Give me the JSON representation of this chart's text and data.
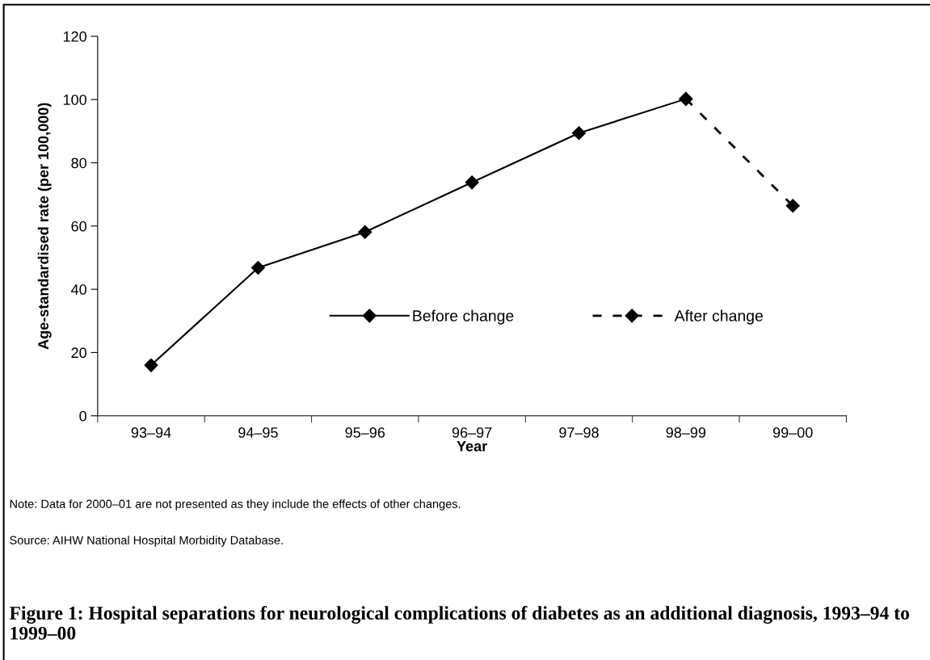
{
  "chart_data": {
    "type": "line",
    "title": "Figure 1: Hospital separations for neurological complications of diabetes as an additional diagnosis, 1993–94 to 1999–00",
    "xlabel": "Year",
    "ylabel": "Age-standardised rate (per 100,000)",
    "categories": [
      "93–94",
      "94–95",
      "95–96",
      "96–97",
      "97–98",
      "98–99",
      "99–00"
    ],
    "series": [
      {
        "name": "Before change",
        "color": "#000000",
        "line_style": "solid",
        "values": [
          16.0,
          46.8,
          58.1,
          73.8,
          89.4,
          100.2,
          null
        ]
      },
      {
        "name": "After change",
        "color": "#000000",
        "line_style": "dashed",
        "values": [
          null,
          null,
          null,
          null,
          null,
          100.2,
          66.4
        ]
      }
    ],
    "marker": "diamond",
    "ylim": [
      0,
      120
    ],
    "yticks": [
      0,
      20,
      40,
      60,
      80,
      100,
      120
    ],
    "grid": false,
    "legend": "center",
    "annotations": [
      "Note: Data for 2000–01 are not presented as they include the effects of other changes.",
      "Source: AIHW National Hospital Morbidity Database."
    ]
  }
}
